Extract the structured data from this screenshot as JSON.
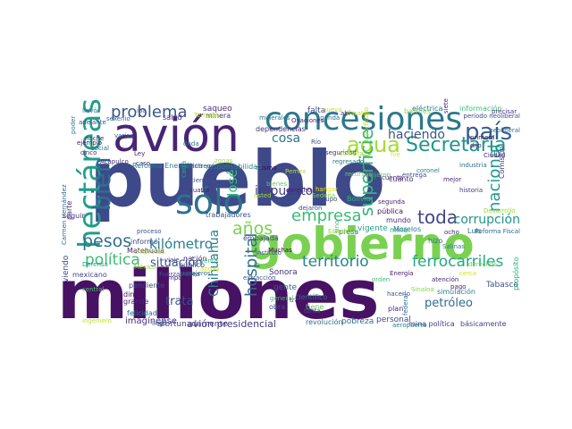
{
  "cloud": {
    "words": [
      {
        "text": "millones",
        "color": "#471164"
      },
      {
        "text": "pueblo",
        "color": "#3e4989"
      },
      {
        "text": "gobierno",
        "color": "#7ad151"
      },
      {
        "text": "avión",
        "color": "#482475"
      },
      {
        "text": "concesiones",
        "color": "#2a788e"
      },
      {
        "text": "sólo",
        "color": "#2c728e"
      },
      {
        "text": "país",
        "color": "#365c8d"
      },
      {
        "text": "hectáreas",
        "color": "#1f9e89"
      },
      {
        "text": "Secretaría",
        "color": "#1f968b"
      },
      {
        "text": "agua",
        "color": "#a5db36"
      },
      {
        "text": "bien",
        "color": "#2e6e8e"
      },
      {
        "text": "problema",
        "color": "#39568c"
      },
      {
        "text": "territorio",
        "color": "#25848e"
      },
      {
        "text": "ferrocarriles",
        "color": "#22a884"
      },
      {
        "text": "empresa",
        "color": "#3bbb75"
      },
      {
        "text": "pesos",
        "color": "#2d708e"
      },
      {
        "text": "política",
        "color": "#3dbc74"
      },
      {
        "text": "kilómetro",
        "color": "#287c8e"
      },
      {
        "text": "años",
        "color": "#7ad151"
      },
      {
        "text": "toda",
        "color": "#404588"
      },
      {
        "text": "corrupción",
        "color": "#20928c"
      },
      {
        "text": "nacional",
        "color": "#1f9a8a"
      },
      {
        "text": "haciendo",
        "color": "#39568c"
      },
      {
        "text": "superficie",
        "color": "#31b57b"
      },
      {
        "text": "impuesto",
        "color": "#433e85"
      },
      {
        "text": "hospital",
        "color": "#2e6f8e"
      },
      {
        "text": "situación",
        "color": "#3a548c"
      },
      {
        "text": "trata",
        "color": "#3b528b"
      },
      {
        "text": "Chihuahua",
        "color": "#26828e"
      },
      {
        "text": "petróleo",
        "color": "#2f6c8e"
      },
      {
        "text": "cosa",
        "color": "#2b758e"
      },
      {
        "text": "José",
        "color": "#35b779"
      },
      {
        "text": "imagínense",
        "color": "#46327e"
      },
      {
        "text": "avión presidencial",
        "color": "#453882"
      },
      {
        "text": "pobreza",
        "color": "#2e6e8e"
      },
      {
        "text": "personal",
        "color": "#3e4a89"
      },
      {
        "text": "básicamente",
        "color": "#404688"
      },
      {
        "text": "afortunadamente",
        "color": "#414487"
      },
      {
        "text": "falta",
        "color": "#404688"
      },
      {
        "text": "saqueo",
        "color": "#472f7d"
      },
      {
        "text": "eléctrica",
        "color": "#2a778e"
      },
      {
        "text": "información",
        "color": "#3fbc73"
      },
      {
        "text": "minera",
        "color": "#46337f"
      },
      {
        "text": "salud",
        "color": "#472d7b"
      },
      {
        "text": "Terrazas",
        "color": "#b5de2b"
      },
      {
        "text": "dependencias",
        "color": "#472a7a"
      },
      {
        "text": "Río",
        "color": "#3c4f8a"
      },
      {
        "text": "Bolivia",
        "color": "#29af7f"
      },
      {
        "text": "segunda",
        "color": "#481f70"
      },
      {
        "text": "pública",
        "color": "#470e61"
      },
      {
        "text": "Luis",
        "color": "#2d718e"
      },
      {
        "text": "mundo",
        "color": "#482475"
      },
      {
        "text": "ocho",
        "color": "#482374"
      },
      {
        "text": "Morelos",
        "color": "#2a788e"
      },
      {
        "text": "vigente",
        "color": "#1fa088"
      },
      {
        "text": "presa",
        "color": "#31678e"
      },
      {
        "text": "mina",
        "color": "#22a785"
      },
      {
        "text": "sino",
        "color": "#3dbc74"
      },
      {
        "text": "hizo",
        "color": "#2f6c8e"
      },
      {
        "text": "Sonora",
        "color": "#46307e"
      },
      {
        "text": "gente",
        "color": "#355f8d"
      },
      {
        "text": "hacerlo",
        "color": "#3b528b"
      },
      {
        "text": "plan",
        "color": "#472c7a"
      },
      {
        "text": "Tabasco",
        "color": "#3c508b"
      },
      {
        "text": "pago",
        "color": "#481c6e"
      },
      {
        "text": "dinero",
        "color": "#481467"
      },
      {
        "text": "grande",
        "color": "#482878"
      },
      {
        "text": "pendiente",
        "color": "#3e4989"
      },
      {
        "text": "felicidad",
        "color": "#2c738e"
      },
      {
        "text": "informó",
        "color": "#3e4989"
      },
      {
        "text": "Matehuala",
        "color": "#482575"
      },
      {
        "text": "nación",
        "color": "#482979"
      },
      {
        "text": "público",
        "color": "#3f4788"
      },
      {
        "text": "mexicano",
        "color": "#414487"
      },
      {
        "text": "viendo",
        "color": "#3f4788"
      },
      {
        "text": "tiempo",
        "color": "#481769"
      },
      {
        "text": "Defensa",
        "color": "#1f9e89"
      },
      {
        "text": "cuatro",
        "color": "#482173"
      },
      {
        "text": "tierra",
        "color": "#3b528b"
      },
      {
        "text": "viaje",
        "color": "#3f4889"
      },
      {
        "text": "obra",
        "color": "#3b528b"
      },
      {
        "text": "científico",
        "color": "#2b748e"
      },
      {
        "text": "trabajadores",
        "color": "#3a538b"
      },
      {
        "text": "embajada",
        "color": "#3f4788"
      },
      {
        "text": "Muchas",
        "color": "#440154"
      },
      {
        "text": "proceso",
        "color": "#3b518b"
      },
      {
        "text": "seguir",
        "color": "#46337f"
      },
      {
        "text": "cuánto",
        "color": "#46307e"
      },
      {
        "text": "Ciudad",
        "color": "#482677"
      },
      {
        "text": "coronel",
        "color": "#26828e"
      },
      {
        "text": "neoliberal",
        "color": "#2c728e"
      },
      {
        "text": "primera",
        "color": "#482576"
      },
      {
        "text": "llevó",
        "color": "#2c738e"
      },
      {
        "text": "sexenio",
        "color": "#2e6e8e"
      },
      {
        "text": "ejemplo",
        "color": "#481467"
      },
      {
        "text": "poder",
        "color": "#2a788e"
      },
      {
        "text": "cinco",
        "color": "#482878"
      },
      {
        "text": "social",
        "color": "#2f6b8e"
      },
      {
        "text": "Acapulco",
        "color": "#46327e"
      },
      {
        "text": "parte",
        "color": "#472d7b"
      },
      {
        "text": "Carmen Hernández",
        "color": "#31678e"
      },
      {
        "text": "período neoliberal",
        "color": "#3e4a89"
      },
      {
        "text": "mismo",
        "color": "#440154"
      },
      {
        "text": "derecho",
        "color": "#482071"
      },
      {
        "text": "mejor",
        "color": "#481d6f"
      },
      {
        "text": "historia",
        "color": "#443a83"
      },
      {
        "text": "Comisión",
        "color": "#453581"
      },
      {
        "text": "Reforma Fiscal",
        "color": "#2e6e8e"
      },
      {
        "text": "Desarrollo",
        "color": "#9bd93c"
      },
      {
        "text": "revolución",
        "color": "#2f6c8e"
      },
      {
        "text": "ingeniero",
        "color": "#c0df25"
      },
      {
        "text": "propósito",
        "color": "#25ab82"
      },
      {
        "text": "simulación",
        "color": "#287c8e"
      },
      {
        "text": "atención",
        "color": "#482071"
      },
      {
        "text": "llegó",
        "color": "#3a548c"
      },
      {
        "text": "tanta",
        "color": "#3a538b"
      },
      {
        "text": "extracción",
        "color": "#3b528b"
      },
      {
        "text": "Energía",
        "color": "#481b6d"
      },
      {
        "text": "Grupo",
        "color": "#3e4989"
      },
      {
        "text": "seguridad",
        "color": "#472c7a"
      },
      {
        "text": "entrega",
        "color": "#3e4989"
      },
      {
        "text": "instituto",
        "color": "#3a548c"
      },
      {
        "text": "minerales",
        "color": "#2b758e"
      },
      {
        "text": "agenda",
        "color": "#2d708e"
      },
      {
        "text": "Salinas",
        "color": "#287d8e"
      },
      {
        "text": "federal",
        "color": "#2f6c8e"
      },
      {
        "text": "mina política",
        "color": "#433d84"
      },
      {
        "text": "porfiriato",
        "color": "#b8de29"
      },
      {
        "text": "responsabilidad",
        "color": "#26828e"
      },
      {
        "text": "cada",
        "color": "#21a585"
      },
      {
        "text": "dejaron",
        "color": "#3c4f8a"
      },
      {
        "text": "industria",
        "color": "#2d708e"
      },
      {
        "text": "aeropuerto",
        "color": "#25858e"
      },
      {
        "text": "traslado",
        "color": "#481b6d"
      },
      {
        "text": "Ovaciones",
        "color": "#482071"
      },
      {
        "text": "general",
        "color": "#3dbc74"
      },
      {
        "text": "dijo",
        "color": "#481769"
      },
      {
        "text": "cuenta",
        "color": "#482071"
      },
      {
        "text": "regresado",
        "color": "#287d8e"
      },
      {
        "text": "Ley",
        "color": "#481d6f"
      },
      {
        "text": "noche",
        "color": "#482475"
      },
      {
        "text": "duda",
        "color": "#2c718e"
      },
      {
        "text": "caso",
        "color": "#482677"
      },
      {
        "text": "entregó",
        "color": "#3f4788"
      },
      {
        "text": "pasajeros",
        "color": "#2e6e8e"
      },
      {
        "text": "adelante",
        "color": "#3e4c8a"
      },
      {
        "text": "precisar",
        "color": "#46337f"
      },
      {
        "text": "varias",
        "color": "#2d718e"
      },
      {
        "text": "ahí",
        "color": "#482677"
      },
      {
        "text": "Fuerza Aérea",
        "color": "#3b528b"
      },
      {
        "text": "iba",
        "color": "#3e4c8a"
      },
      {
        "text": "siete",
        "color": "#482878"
      },
      {
        "text": "Reforma Energética",
        "color": "#25848e"
      },
      {
        "text": "México",
        "color": "#8bd646"
      },
      {
        "text": "recursos",
        "color": "#70cf57"
      },
      {
        "text": "compra",
        "color": "#a0da39"
      },
      {
        "text": "fue",
        "color": "#dde318"
      },
      {
        "text": "tiene",
        "color": "#5ec962"
      },
      {
        "text": "Pemex",
        "color": "#bddf26"
      },
      {
        "text": "venta",
        "color": "#29af7f"
      },
      {
        "text": "nueva",
        "color": "#c8e020"
      },
      {
        "text": "orden",
        "color": "#44bf70"
      },
      {
        "text": "barriles",
        "color": "#95d840"
      },
      {
        "text": "derechos",
        "color": "#6ece58"
      },
      {
        "text": "baratas",
        "color": "#d2e21b"
      },
      {
        "text": "empresas",
        "color": "#addc30"
      },
      {
        "text": "zonas",
        "color": "#9fda3a"
      },
      {
        "text": "bienes",
        "color": "#5ec962"
      },
      {
        "text": "cerca",
        "color": "#cae11f"
      },
      {
        "text": "usted",
        "color": "#a2da37"
      },
      {
        "text": "hangar",
        "color": "#e2e418"
      },
      {
        "text": "dijeron",
        "color": "#4ac16d"
      },
      {
        "text": "Estados",
        "color": "#8ed645"
      },
      {
        "text": "central",
        "color": "#4ec36b"
      },
      {
        "text": "apoyo",
        "color": "#dae319"
      },
      {
        "text": "Sinaloa",
        "color": "#84d44b"
      },
      {
        "text": "Sedena",
        "color": "#77d153"
      },
      {
        "text": "mitad",
        "color": "#c5e021"
      },
      {
        "text": "millón",
        "color": "#63cb5f"
      },
      {
        "text": "puede",
        "color": "#d5e21a"
      },
      {
        "text": "vuelo",
        "color": "#9dd93b"
      },
      {
        "text": "además",
        "color": "#b2dd2d"
      }
    ]
  }
}
